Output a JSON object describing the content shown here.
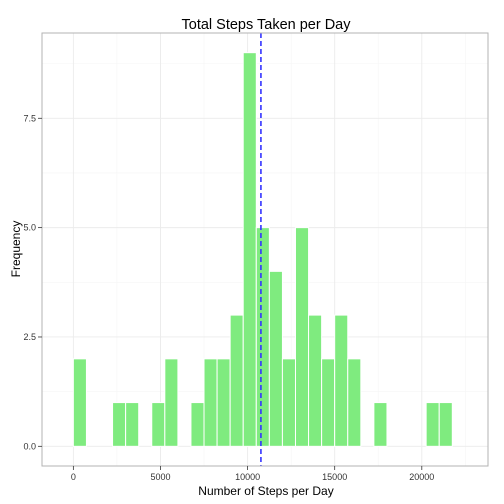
{
  "chart_data": {
    "type": "bar",
    "title": "Total Steps Taken per Day",
    "xlabel": "Number of Steps per Day",
    "ylabel": "Frequency",
    "xlim": [
      -1800,
      23800
    ],
    "ylim": [
      -0.45,
      9.45
    ],
    "x_ticks": [
      0,
      5000,
      10000,
      15000,
      20000
    ],
    "y_ticks": [
      0,
      2.5,
      5,
      7.5
    ],
    "y_tick_labels": [
      "0.0",
      "2.5",
      "5.0",
      "7.5"
    ],
    "bin_width": 750,
    "bins": [
      {
        "start": 0,
        "count": 2
      },
      {
        "start": 2250,
        "count": 1
      },
      {
        "start": 3000,
        "count": 1
      },
      {
        "start": 4500,
        "count": 1
      },
      {
        "start": 5250,
        "count": 2
      },
      {
        "start": 6750,
        "count": 1
      },
      {
        "start": 7500,
        "count": 2
      },
      {
        "start": 8250,
        "count": 2
      },
      {
        "start": 9000,
        "count": 3
      },
      {
        "start": 9750,
        "count": 9
      },
      {
        "start": 10500,
        "count": 5
      },
      {
        "start": 11250,
        "count": 4
      },
      {
        "start": 12000,
        "count": 2
      },
      {
        "start": 12750,
        "count": 5
      },
      {
        "start": 13500,
        "count": 3
      },
      {
        "start": 14250,
        "count": 2
      },
      {
        "start": 15000,
        "count": 3
      },
      {
        "start": 15750,
        "count": 2
      },
      {
        "start": 17250,
        "count": 1
      },
      {
        "start": 20250,
        "count": 1
      },
      {
        "start": 21000,
        "count": 1
      }
    ],
    "mean_line_x": 10766,
    "grid": true,
    "colors": {
      "bar_fill": "#7FEB7F",
      "bar_edge": "#ffffff",
      "mean_line": "#3333ff",
      "grid_major": "#ebebeb",
      "grid_minor": "#f5f5f5",
      "panel_border": "#b3b3b3"
    }
  }
}
